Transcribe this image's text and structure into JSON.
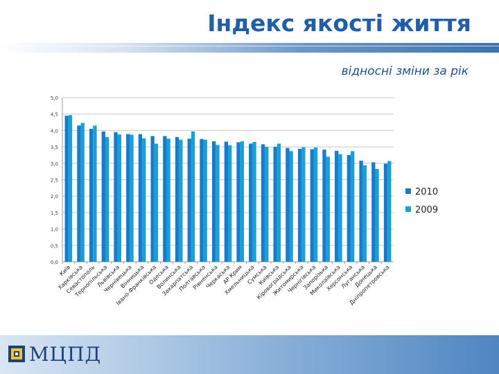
{
  "header": {
    "title": "Індекс якості життя",
    "subtitle": "відносні зміни за рік"
  },
  "footer": {
    "logo_text": "МЦПД"
  },
  "colors": {
    "series_2010": "#1f78c8",
    "series_2009": "#13a3dc",
    "title": "#1f5ea8",
    "grid": "#c8c8c8"
  },
  "chart_data": {
    "type": "bar",
    "title": "",
    "xlabel": "",
    "ylabel": "",
    "ylim": [
      0,
      5
    ],
    "yticks": [
      "0,0",
      "0,5",
      "1,0",
      "1,5",
      "2,0",
      "2,5",
      "3,0",
      "3,5",
      "4,0",
      "4,5",
      "5,0"
    ],
    "grid": true,
    "legend_position": "right",
    "categories": [
      "Київ",
      "Харківська",
      "Севастополь",
      "Тернопільська",
      "Львівська",
      "Чернівецька",
      "Вінницька",
      "Івано-Франківська",
      "Одеська",
      "Волинська",
      "Закарпатська",
      "Полтавська",
      "Рівненська",
      "Черкаська",
      "АР Крим",
      "Хмельницька",
      "Сумська",
      "Київська",
      "Кіровоградська",
      "Житомирська",
      "Чернігівська",
      "Запорізька",
      "Миколаївська",
      "Херсонська",
      "Луганська",
      "Донецька",
      "Дніпропетровська"
    ],
    "series": [
      {
        "name": "2010",
        "values": [
          4.45,
          4.15,
          4.05,
          3.97,
          3.95,
          3.89,
          3.89,
          3.83,
          3.83,
          3.8,
          3.75,
          3.74,
          3.67,
          3.66,
          3.64,
          3.6,
          3.58,
          3.5,
          3.47,
          3.44,
          3.43,
          3.42,
          3.38,
          3.25,
          3.08,
          3.03,
          2.99
        ]
      },
      {
        "name": "2009",
        "values": [
          4.47,
          4.23,
          4.15,
          3.8,
          3.88,
          3.87,
          3.76,
          3.6,
          3.75,
          3.72,
          3.97,
          3.72,
          3.56,
          3.55,
          3.67,
          3.65,
          3.5,
          3.6,
          3.37,
          3.49,
          3.48,
          3.2,
          3.28,
          3.37,
          2.94,
          2.83,
          3.07
        ]
      }
    ]
  }
}
